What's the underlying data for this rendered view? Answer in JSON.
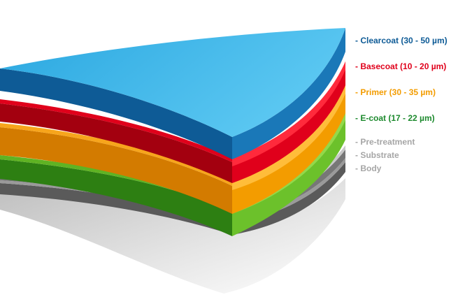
{
  "layers": [
    {
      "label": "- Clearcoat (30 - 50 µm)",
      "color": "#0e5b96"
    },
    {
      "label": "- Basecoat (10 - 20 µm)",
      "color": "#e0001b"
    },
    {
      "label": "- Primer (30 - 35 µm)",
      "color": "#f39c00"
    },
    {
      "label": "- E-coat (17 - 22 µm)",
      "color": "#1d8a2e"
    },
    {
      "label": "- Pre-treatment",
      "color": "#a6a6a6"
    },
    {
      "label": "- Substrate",
      "color": "#a6a6a6"
    },
    {
      "label": "- Body",
      "color": "#a6a6a6"
    }
  ]
}
